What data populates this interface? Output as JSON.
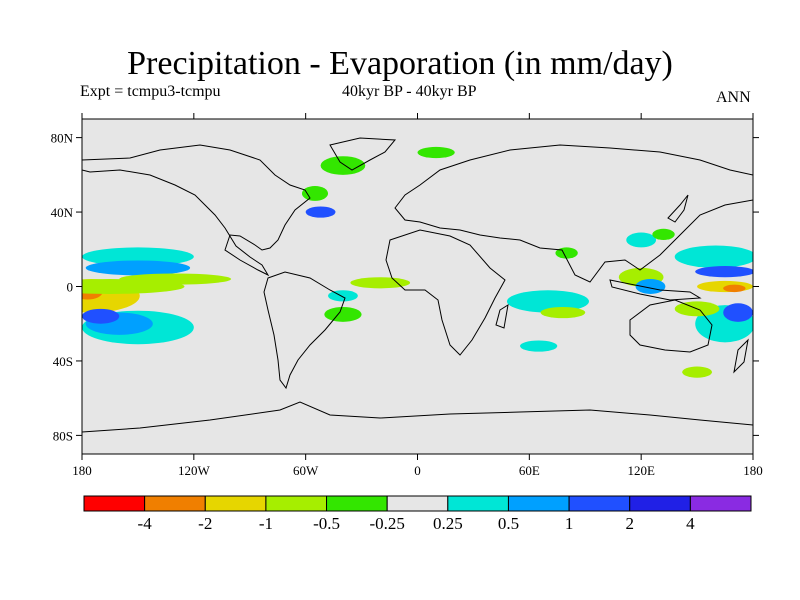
{
  "title": "Precipitation - Evaporation (in mm/day)",
  "subtitle_left": "Expt = tcmpu3-tcmpu",
  "subtitle_center": "40kyr BP - 40kyr BP",
  "subtitle_right": "ANN",
  "map": {
    "projection": "cylindrical equidistant",
    "lon_range": [
      -180,
      180
    ],
    "lat_range": [
      -90,
      90
    ],
    "background_color": "#e6e6e6",
    "lat_ticks": [
      {
        "value": 80,
        "label": "80N"
      },
      {
        "value": 40,
        "label": "40N"
      },
      {
        "value": 0,
        "label": "0"
      },
      {
        "value": -40,
        "label": "40S"
      },
      {
        "value": -80,
        "label": "80S"
      }
    ],
    "lon_ticks": [
      {
        "value": -180,
        "label": "180"
      },
      {
        "value": -120,
        "label": "120W"
      },
      {
        "value": -60,
        "label": "60W"
      },
      {
        "value": 0,
        "label": "0"
      },
      {
        "value": 60,
        "label": "60E"
      },
      {
        "value": 120,
        "label": "120E"
      },
      {
        "value": 180,
        "label": "180"
      }
    ]
  },
  "colorbar": {
    "colors": [
      "#ff0000",
      "#f07f00",
      "#e6d600",
      "#a6ee00",
      "#33e600",
      "#e6e6e6",
      "#00e6d6",
      "#00a0ff",
      "#2050ff",
      "#2020e6",
      "#8a2be2"
    ],
    "labels": [
      "-4",
      "-2",
      "-1",
      "-0.5",
      "-0.25",
      "0.25",
      "0.5",
      "1",
      "2",
      "4"
    ]
  },
  "regions": [
    {
      "name": "pacific-south-yellow",
      "color": "#e6d600",
      "lon": -175,
      "lat": -5,
      "rlon": 26,
      "rlat": 9
    },
    {
      "name": "pacific-south-orange",
      "color": "#f07f00",
      "lon": -177,
      "lat": -3,
      "rlon": 8,
      "rlat": 4
    },
    {
      "name": "pacific-south-green",
      "color": "#a6ee00",
      "lon": -165,
      "lat": 0,
      "rlon": 40,
      "rlat": 4
    },
    {
      "name": "pacific-south-cyan",
      "color": "#00e6d6",
      "lon": -150,
      "lat": -22,
      "rlon": 30,
      "rlat": 9
    },
    {
      "name": "pacific-south-blue",
      "color": "#00a0ff",
      "lon": -160,
      "lat": -20,
      "rlon": 18,
      "rlat": 6
    },
    {
      "name": "pacific-south-darkblue",
      "color": "#2050ff",
      "lon": -170,
      "lat": -16,
      "rlon": 10,
      "rlat": 4
    },
    {
      "name": "pacific-north-cyan",
      "color": "#00e6d6",
      "lon": -150,
      "lat": 16,
      "rlon": 30,
      "rlat": 5
    },
    {
      "name": "pacific-north-blue",
      "color": "#00a0ff",
      "lon": -150,
      "lat": 10,
      "rlon": 28,
      "rlat": 4
    },
    {
      "name": "pacific-itcz-green",
      "color": "#a6ee00",
      "lon": -130,
      "lat": 4,
      "rlon": 30,
      "rlat": 3
    },
    {
      "name": "atlantic-north-blue",
      "color": "#2050ff",
      "lon": -52,
      "lat": 40,
      "rlon": 8,
      "rlat": 3
    },
    {
      "name": "atlantic-north-green",
      "color": "#33e600",
      "lon": -55,
      "lat": 50,
      "rlon": 7,
      "rlat": 4
    },
    {
      "name": "greenland-green",
      "color": "#33e600",
      "lon": -40,
      "lat": 65,
      "rlon": 12,
      "rlat": 5
    },
    {
      "name": "arctic-green",
      "color": "#33e600",
      "lon": 10,
      "lat": 72,
      "rlon": 10,
      "rlat": 3
    },
    {
      "name": "atlantic-itcz-green",
      "color": "#a6ee00",
      "lon": -20,
      "lat": 2,
      "rlon": 16,
      "rlat": 3
    },
    {
      "name": "atlantic-cyan",
      "color": "#00e6d6",
      "lon": -40,
      "lat": -5,
      "rlon": 8,
      "rlat": 3
    },
    {
      "name": "brazil-green",
      "color": "#33e600",
      "lon": -40,
      "lat": -15,
      "rlon": 10,
      "rlat": 4
    },
    {
      "name": "indian-cyan",
      "color": "#00e6d6",
      "lon": 70,
      "lat": -8,
      "rlon": 22,
      "rlat": 6
    },
    {
      "name": "indian-green",
      "color": "#a6ee00",
      "lon": 78,
      "lat": -14,
      "rlon": 12,
      "rlat": 3
    },
    {
      "name": "indian-south-cyan",
      "color": "#00e6d6",
      "lon": 65,
      "lat": -32,
      "rlon": 10,
      "rlat": 3
    },
    {
      "name": "india-green",
      "color": "#33e600",
      "lon": 80,
      "lat": 18,
      "rlon": 6,
      "rlat": 3
    },
    {
      "name": "maritime-green",
      "color": "#a6ee00",
      "lon": 120,
      "lat": 5,
      "rlon": 12,
      "rlat": 5
    },
    {
      "name": "maritime-blue",
      "color": "#00a0ff",
      "lon": 125,
      "lat": 0,
      "rlon": 8,
      "rlat": 4
    },
    {
      "name": "china-cyan",
      "color": "#00e6d6",
      "lon": 120,
      "lat": 25,
      "rlon": 8,
      "rlat": 4
    },
    {
      "name": "japan-green",
      "color": "#33e600",
      "lon": 132,
      "lat": 28,
      "rlon": 6,
      "rlat": 3
    },
    {
      "name": "westpac-cyan",
      "color": "#00e6d6",
      "lon": 160,
      "lat": 16,
      "rlon": 22,
      "rlat": 6
    },
    {
      "name": "westpac-blue",
      "color": "#2050ff",
      "lon": 165,
      "lat": 8,
      "rlon": 16,
      "rlat": 3
    },
    {
      "name": "westpac-yellow",
      "color": "#e6d600",
      "lon": 165,
      "lat": 0,
      "rlon": 15,
      "rlat": 3
    },
    {
      "name": "westpac-orange",
      "color": "#f07f00",
      "lon": 170,
      "lat": -1,
      "rlon": 6,
      "rlat": 2
    },
    {
      "name": "spcz-cyan",
      "color": "#00e6d6",
      "lon": 165,
      "lat": -20,
      "rlon": 16,
      "rlat": 10
    },
    {
      "name": "spcz-blue",
      "color": "#2050ff",
      "lon": 172,
      "lat": -14,
      "rlon": 8,
      "rlat": 5
    },
    {
      "name": "spcz-green",
      "color": "#a6ee00",
      "lon": 150,
      "lat": -12,
      "rlon": 12,
      "rlat": 4
    },
    {
      "name": "south-pac-green",
      "color": "#a6ee00",
      "lon": 150,
      "lat": -46,
      "rlon": 8,
      "rlat": 3
    }
  ]
}
